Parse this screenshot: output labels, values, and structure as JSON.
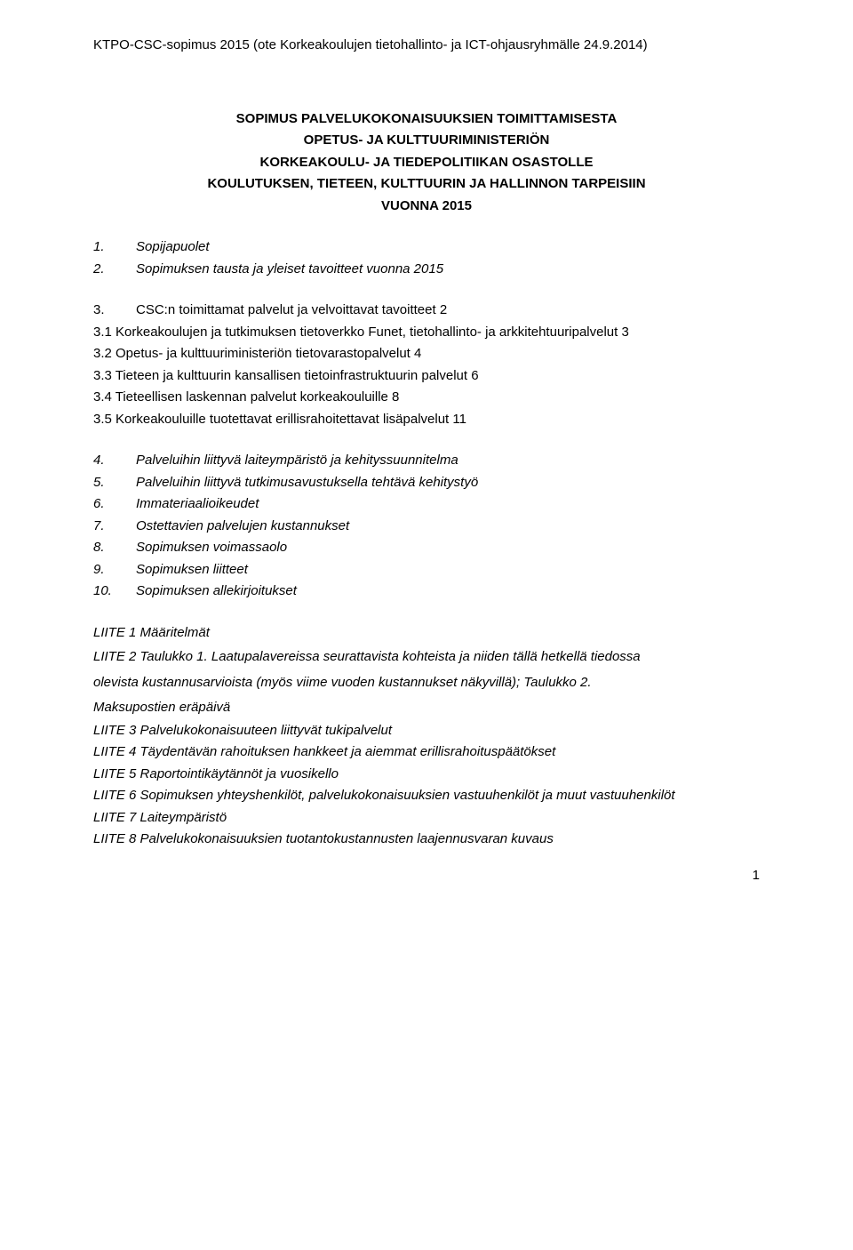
{
  "header": "KTPO-CSC-sopimus 2015 (ote Korkeakoulujen tietohallinto- ja ICT-ohjausryhmälle 24.9.2014)",
  "title": {
    "l1": "SOPIMUS PALVELUKOKONAISUUKSIEN TOIMITTAMISESTA",
    "l2": "OPETUS- JA KULTTUURIMINISTERIÖN",
    "l3": "KORKEAKOULU- JA TIEDEPOLITIIKAN OSASTOLLE",
    "l4": "KOULUTUKSEN, TIETEEN, KULTTUURIN JA HALLINNON TARPEISIIN",
    "l5": "VUONNA 2015"
  },
  "toc1": [
    {
      "n": "1.",
      "t": "Sopijapuolet"
    },
    {
      "n": "2.",
      "t": "Sopimuksen tausta ja yleiset tavoitteet vuonna 2015"
    }
  ],
  "toc2": [
    {
      "n": "3.",
      "t": "CSC:n toimittamat palvelut ja velvoittavat tavoitteet 2"
    }
  ],
  "sub": [
    "3.1 Korkeakoulujen ja tutkimuksen tietoverkko Funet, tietohallinto- ja arkkitehtuuripalvelut 3",
    "3.2 Opetus- ja kulttuuriministeriön tietovarastopalvelut 4",
    "3.3 Tieteen ja kulttuurin kansallisen tietoinfrastruktuurin palvelut 6",
    "3.4 Tieteellisen laskennan palvelut korkeakouluille 8",
    "3.5 Korkeakouluille tuotettavat erillisrahoitettavat lisäpalvelut 11"
  ],
  "toc3": [
    {
      "n": "4.",
      "t": "Palveluihin liittyvä laiteympäristö ja kehityssuunnitelma"
    },
    {
      "n": "5.",
      "t": "Palveluihin liittyvä tutkimusavustuksella tehtävä kehitystyö"
    },
    {
      "n": "6.",
      "t": "Immateriaalioikeudet"
    },
    {
      "n": "7.",
      "t": "Ostettavien palvelujen kustannukset"
    },
    {
      "n": "8.",
      "t": "Sopimuksen voimassaolo"
    },
    {
      "n": "9.",
      "t": "Sopimuksen liitteet"
    },
    {
      "n": "10.",
      "t": "Sopimuksen allekirjoitukset"
    }
  ],
  "liite": {
    "l1": "LIITE 1 Määritelmät",
    "l2a": "LIITE 2 Taulukko 1. Laatupalavereissa seurattavista kohteista ja niiden tällä hetkellä tiedossa",
    "l2b": "olevista kustannusarvioista (myös viime vuoden kustannukset näkyvillä); Taulukko 2.",
    "l2c": "Maksupostien eräpäivä",
    "l3": "LIITE 3 Palvelukokonaisuuteen liittyvät tukipalvelut",
    "l4": "LIITE 4 Täydentävän rahoituksen hankkeet ja aiemmat erillisrahoituspäätökset",
    "l5": "LIITE 5 Raportointikäytännöt ja vuosikello",
    "l6": "LIITE 6 Sopimuksen yhteyshenkilöt, palvelukokonaisuuksien vastuuhenkilöt ja muut vastuuhenkilöt",
    "l7": "LIITE 7 Laiteympäristö",
    "l8": "LIITE 8 Palvelukokonaisuuksien tuotantokustannusten laajennusvaran kuvaus"
  },
  "page": "1"
}
